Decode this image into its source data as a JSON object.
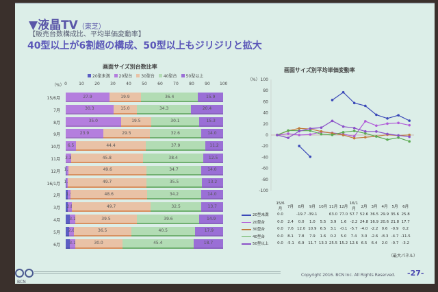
{
  "slide": {
    "title": "▼液晶TV",
    "maker": "（東芝）",
    "subtitle": "【販売台数構成比、平均単価変動率】",
    "headline": "40型以上が6割超の構成、50型以上もジリジリと拡大",
    "copyright": "Copyright 2016. BCN Inc. All Rights Reserved.",
    "page": "-27-",
    "logo": "BCN",
    "note": "（最大パネル）"
  },
  "colors": {
    "lt20": "#5b5ec4",
    "s20": "#b47ede",
    "s30": "#e9c2a6",
    "s40": "#b2dcb4",
    "s50": "#9a6fd6"
  },
  "chart_data": [
    {
      "type": "bar",
      "stacked": true,
      "title": "画面サイズ別台数比率",
      "unit": "（%）",
      "xlim": [
        0,
        100
      ],
      "xticks": [
        "0",
        "10",
        "20",
        "30",
        "40",
        "50",
        "60",
        "70",
        "80",
        "90",
        "100"
      ],
      "legend": [
        "20型未満",
        "20型台",
        "30型台",
        "40型台",
        "50型以上"
      ],
      "categories": [
        "15/6月",
        "7月",
        "8月",
        "9月",
        "10月",
        "11月",
        "12月",
        "16/1月",
        "2月",
        "3月",
        "4月",
        "5月",
        "6月"
      ],
      "series": [
        {
          "name": "20型未満",
          "values": [
            0.0,
            0.0,
            0.0,
            0.0,
            0.0,
            0.0,
            0.3,
            0.4,
            1.3,
            1.3,
            2.8,
            2.3,
            2.8
          ]
        },
        {
          "name": "20型台",
          "values": [
            27.9,
            30.3,
            35.0,
            23.9,
            6.5,
            3.3,
            1.5,
            1.1,
            1.9,
            2.8,
            3.1,
            2.8,
            3.1
          ]
        },
        {
          "name": "30型台",
          "values": [
            19.9,
            15.0,
            19.5,
            29.5,
            44.4,
            45.8,
            49.6,
            49.7,
            48.6,
            49.7,
            39.5,
            36.5,
            30.0
          ]
        },
        {
          "name": "40型台",
          "values": [
            36.4,
            34.3,
            30.1,
            32.6,
            37.9,
            38.4,
            34.7,
            35.5,
            34.2,
            32.5,
            39.6,
            40.5,
            45.4
          ]
        },
        {
          "name": "50型以上",
          "values": [
            15.9,
            20.4,
            15.3,
            14.0,
            11.2,
            12.5,
            14.0,
            13.2,
            14.0,
            13.7,
            14.9,
            17.9,
            18.7
          ]
        }
      ]
    },
    {
      "type": "line",
      "title": "画面サイズ別平均単価変動率",
      "unit": "（%）",
      "ylim": [
        -100,
        100
      ],
      "yticks": [
        "100",
        "80",
        "60",
        "40",
        "20",
        "0",
        "-20",
        "-40",
        "-60",
        "-80",
        "-100"
      ],
      "categories": [
        "15/6月",
        "7月",
        "8月",
        "9月",
        "10月",
        "11月",
        "12月",
        "16/1月",
        "2月",
        "3月",
        "4月",
        "5月",
        "6月"
      ],
      "series": [
        {
          "name": "20型未満",
          "color": "#3a48b8",
          "values": [
            0.0,
            null,
            -19.7,
            -39.1,
            null,
            63.0,
            77.0,
            57.7,
            52.6,
            36.5,
            29.9,
            35.6,
            25.8
          ]
        },
        {
          "name": "20型台",
          "color": "#b05ad8",
          "values": [
            0.0,
            2.4,
            -0.0,
            1.0,
            5.5,
            3.9,
            1.6,
            -2.2,
            24.8,
            16.9,
            20.6,
            21.8,
            17.7
          ]
        },
        {
          "name": "30型台",
          "color": "#c07a3a",
          "values": [
            0.0,
            7.6,
            12.0,
            10.9,
            6.5,
            3.1,
            -0.1,
            -5.7,
            -4.0,
            -2.2,
            0.6,
            -0.9,
            0.2
          ]
        },
        {
          "name": "40型台",
          "color": "#5aaa50",
          "values": [
            0.0,
            8.1,
            7.8,
            7.9,
            1.6,
            0.2,
            5.0,
            7.4,
            3.0,
            -2.6,
            -8.3,
            -4.7,
            -11.5
          ]
        },
        {
          "name": "50型以上",
          "color": "#8a50c8",
          "values": [
            0.0,
            -5.1,
            6.9,
            11.7,
            13.3,
            25.5,
            15.2,
            12.6,
            6.5,
            6.4,
            2.0,
            -0.7,
            -3.2
          ]
        }
      ]
    }
  ]
}
